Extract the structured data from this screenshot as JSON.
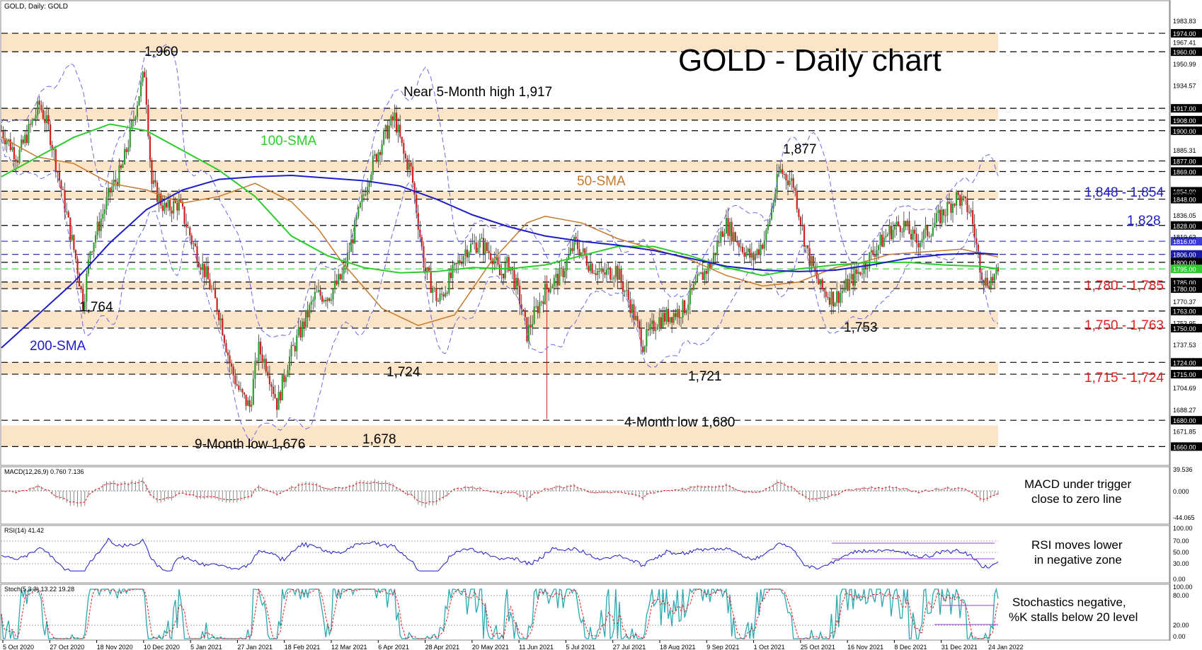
{
  "header": {
    "instrument": "GOLD, Daily:  GOLD"
  },
  "chart_data": {
    "type": "candlestick",
    "title": "GOLD - Daily chart",
    "x_ticks": [
      "5 Oct 2020",
      "27 Oct 2020",
      "18 Nov 2020",
      "10 Dec 2020",
      "5 Jan 2021",
      "27 Jan 2021",
      "18 Feb 2021",
      "12 Mar 2021",
      "6 Apr 2021",
      "28 Apr 2021",
      "20 May 2021",
      "11 Jun 2021",
      "5 Jul 2021",
      "27 Jul 2021",
      "18 Aug 2021",
      "9 Sep 2021",
      "1 Oct 2021",
      "25 Oct 2021",
      "16 Nov 2021",
      "8 Dec 2021",
      "31 Dec 2021",
      "24 Jan 2022"
    ],
    "price_ylim": [
      1650,
      1995
    ],
    "price_axis_ticks": [
      "1983.83",
      "1967.41",
      "1950.99",
      "1934.57",
      "1885.31",
      "1852.89",
      "1836.05",
      "1819.63",
      "1770.37",
      "1753.95",
      "1737.53",
      "1704.69",
      "1688.27",
      "1671.85"
    ],
    "levels": [
      {
        "value": 1974,
        "label": "1974.00",
        "color": "#000000"
      },
      {
        "value": 1960,
        "label": "1960.00",
        "color": "#000000"
      },
      {
        "value": 1917,
        "label": "1917.00",
        "color": "#000000"
      },
      {
        "value": 1908,
        "label": "1908.00",
        "color": "#000000"
      },
      {
        "value": 1900,
        "label": "1900.00",
        "color": "#000000"
      },
      {
        "value": 1877,
        "label": "1877.00",
        "color": "#000000"
      },
      {
        "value": 1869,
        "label": "1869.00",
        "color": "#000000"
      },
      {
        "value": 1854,
        "label": "1854.00",
        "color": "#000000"
      },
      {
        "value": 1848,
        "label": "1848.00",
        "color": "#000000"
      },
      {
        "value": 1828,
        "label": "1828.00",
        "color": "#000000"
      },
      {
        "value": 1816,
        "label": "1816.00",
        "color": "#3b3bd6"
      },
      {
        "value": 1806,
        "label": "1806.00",
        "color": "#1a1aa6"
      },
      {
        "value": 1800,
        "label": "1800.00",
        "color": "#000000"
      },
      {
        "value": 1795,
        "label": "1795.00",
        "color": "#2dcc2d"
      },
      {
        "value": 1785,
        "label": "1785.00",
        "color": "#000000"
      },
      {
        "value": 1780,
        "label": "1780.00",
        "color": "#000000"
      },
      {
        "value": 1763,
        "label": "1763.00",
        "color": "#000000"
      },
      {
        "value": 1750,
        "label": "1750.00",
        "color": "#000000"
      },
      {
        "value": 1724,
        "label": "1724.00",
        "color": "#000000"
      },
      {
        "value": 1715,
        "label": "1715.00",
        "color": "#000000"
      },
      {
        "value": 1680,
        "label": "1680.00",
        "color": "#000000"
      },
      {
        "value": 1660,
        "label": "1660.00",
        "color": "#000000"
      }
    ],
    "zones": [
      [
        1960,
        1974
      ],
      [
        1908,
        1917
      ],
      [
        1869,
        1877
      ],
      [
        1848,
        1854
      ],
      [
        1780,
        1785
      ],
      [
        1750,
        1763
      ],
      [
        1715,
        1724
      ],
      [
        1660,
        1676
      ]
    ],
    "series": [
      {
        "name": "50-SMA",
        "color": "#c47a2c",
        "points": [
          [
            0,
            1895
          ],
          [
            20,
            1880
          ],
          [
            40,
            1875
          ],
          [
            60,
            1860
          ],
          [
            80,
            1855
          ],
          [
            100,
            1845
          ],
          [
            120,
            1850
          ],
          [
            140,
            1860
          ],
          [
            160,
            1846
          ],
          [
            175,
            1825
          ],
          [
            188,
            1800
          ],
          [
            210,
            1765
          ],
          [
            230,
            1752
          ],
          [
            250,
            1760
          ],
          [
            270,
            1800
          ],
          [
            290,
            1830
          ],
          [
            300,
            1835
          ],
          [
            320,
            1830
          ],
          [
            340,
            1818
          ],
          [
            360,
            1810
          ],
          [
            380,
            1802
          ],
          [
            400,
            1790
          ],
          [
            420,
            1782
          ],
          [
            440,
            1785
          ],
          [
            460,
            1796
          ],
          [
            475,
            1800
          ],
          [
            490,
            1806
          ],
          [
            510,
            1808
          ],
          [
            530,
            1810
          ],
          [
            550,
            1804
          ]
        ]
      },
      {
        "name": "100-SMA",
        "color": "#2ccc2c",
        "points": [
          [
            0,
            1865
          ],
          [
            20,
            1880
          ],
          [
            40,
            1895
          ],
          [
            60,
            1905
          ],
          [
            80,
            1900
          ],
          [
            100,
            1885
          ],
          [
            120,
            1870
          ],
          [
            140,
            1850
          ],
          [
            160,
            1820
          ],
          [
            180,
            1805
          ],
          [
            200,
            1796
          ],
          [
            220,
            1792
          ],
          [
            240,
            1793
          ],
          [
            260,
            1796
          ],
          [
            280,
            1795
          ],
          [
            300,
            1798
          ],
          [
            320,
            1805
          ],
          [
            340,
            1812
          ],
          [
            360,
            1812
          ],
          [
            380,
            1805
          ],
          [
            400,
            1796
          ],
          [
            420,
            1790
          ],
          [
            440,
            1795
          ],
          [
            460,
            1798
          ],
          [
            480,
            1800
          ],
          [
            500,
            1800
          ],
          [
            520,
            1798
          ],
          [
            540,
            1797
          ],
          [
            550,
            1795
          ]
        ]
      },
      {
        "name": "200-SMA",
        "color": "#1c1cc8",
        "points": [
          [
            0,
            1735
          ],
          [
            20,
            1760
          ],
          [
            40,
            1785
          ],
          [
            60,
            1815
          ],
          [
            80,
            1840
          ],
          [
            100,
            1855
          ],
          [
            120,
            1863
          ],
          [
            140,
            1865
          ],
          [
            160,
            1866
          ],
          [
            180,
            1864
          ],
          [
            200,
            1862
          ],
          [
            220,
            1858
          ],
          [
            240,
            1848
          ],
          [
            260,
            1836
          ],
          [
            280,
            1827
          ],
          [
            300,
            1820
          ],
          [
            320,
            1816
          ],
          [
            340,
            1813
          ],
          [
            360,
            1809
          ],
          [
            380,
            1803
          ],
          [
            400,
            1797
          ],
          [
            420,
            1794
          ],
          [
            440,
            1793
          ],
          [
            460,
            1794
          ],
          [
            480,
            1798
          ],
          [
            500,
            1803
          ],
          [
            520,
            1806
          ],
          [
            540,
            1807
          ],
          [
            550,
            1806
          ]
        ]
      }
    ],
    "series_labels": {
      "sma50": "50-SMA",
      "sma100": "100-SMA",
      "sma200": "200-SMA"
    },
    "annotations": {
      "a1960": "1,960",
      "a1917": "Near 5-Month high 1,917",
      "a1877": "1,877",
      "a1764": "1,764",
      "a1724": "1,724",
      "a1721": "1,721",
      "a1753": "1,753",
      "a1680": "4-Month low 1,680",
      "a1676": "9-Month low 1,676",
      "a1678": "1,678"
    },
    "level_labels": [
      {
        "text": "1,848 - 1,854",
        "color": "#1c1cc8"
      },
      {
        "text": "1,828",
        "color": "#1c1cc8"
      },
      {
        "text": "1,780 - 1,785",
        "color": "#e02020"
      },
      {
        "text": "1,750 - 1,763",
        "color": "#e02020"
      },
      {
        "text": "1,715 - 1,724",
        "color": "#e02020"
      }
    ],
    "macd": {
      "header": "MACD(12,26,9) 0.760 7.136",
      "ticks": [
        "39.536",
        "0.000",
        "-44.065"
      ],
      "note1": "MACD under trigger",
      "note2": "close to zero line"
    },
    "rsi": {
      "header": "RSI(14) 41.42",
      "ticks": [
        "100.00",
        "70.00",
        "50.00",
        "30.00",
        "0.00"
      ],
      "note1": "RSI moves lower",
      "note2": "in negative zone"
    },
    "stoch": {
      "header": "Stoch(5,3,3) 13.22 19.28",
      "ticks": [
        "100.00",
        "80.00",
        "20.00",
        "0.00"
      ],
      "note1": "Stochastics negative,",
      "note2": "%K stalls below 20 level"
    }
  }
}
